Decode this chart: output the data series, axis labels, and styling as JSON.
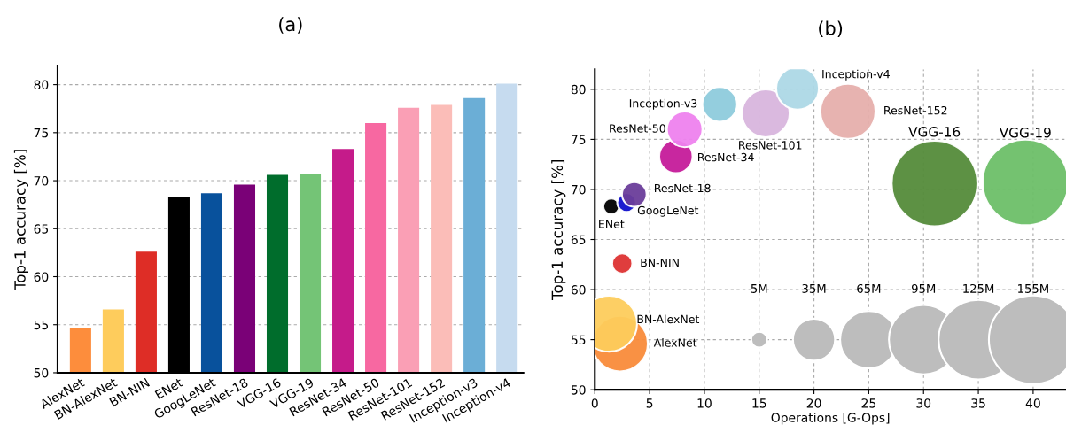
{
  "chart_data": [
    {
      "type": "bar",
      "title": "(a)",
      "ylabel": "Top-1 accuracy [%]",
      "categories": [
        "AlexNet",
        "BN-AlexNet",
        "BN-NIN",
        "ENet",
        "GoogLeNet",
        "ResNet-18",
        "VGG-16",
        "VGG-19",
        "ResNet-34",
        "ResNet-50",
        "ResNet-101",
        "ResNet-152",
        "Inception-v3",
        "Inception-v4"
      ],
      "values": [
        54.6,
        56.6,
        62.6,
        68.3,
        68.7,
        69.6,
        70.6,
        70.7,
        73.3,
        76.0,
        77.6,
        77.9,
        78.6,
        80.1
      ],
      "colors": [
        "#fd8d3c",
        "#fecc5c",
        "#de2d26",
        "#000000",
        "#08519c",
        "#7a0177",
        "#006d2c",
        "#74c476",
        "#c51b8a",
        "#f768a1",
        "#fa9fb5",
        "#fbbdb8",
        "#6baed6",
        "#c6dbef"
      ],
      "ylim": [
        50,
        82
      ],
      "yticks": [
        50,
        55,
        60,
        65,
        70,
        75,
        80
      ],
      "grid": "y"
    },
    {
      "type": "bubble",
      "title": "(b)",
      "xlabel": "Operations [G-Ops]",
      "ylabel": "Top-1 accuracy [%]",
      "xlim": [
        0,
        43
      ],
      "xticks": [
        0,
        5,
        10,
        15,
        20,
        25,
        30,
        35,
        40
      ],
      "ylim": [
        50,
        82
      ],
      "yticks": [
        50,
        55,
        60,
        65,
        70,
        75,
        80
      ],
      "grid": true,
      "series": [
        {
          "name": "AlexNet",
          "color": "#f98b3a",
          "x": [
            2.3
          ],
          "values": [
            54.6
          ],
          "sizes": [
            61
          ]
        },
        {
          "name": "BN-AlexNet",
          "color": "#fdcc5c",
          "x": [
            1.3
          ],
          "values": [
            56.6
          ],
          "sizes": [
            62
          ]
        },
        {
          "name": "BN-NIN",
          "color": "#dd3333",
          "x": [
            2.5
          ],
          "values": [
            62.6
          ],
          "sizes": [
            8
          ]
        },
        {
          "name": "ENet",
          "color": "#000000",
          "x": [
            1.5
          ],
          "values": [
            68.3
          ],
          "sizes": [
            5
          ]
        },
        {
          "name": "GoogLeNet",
          "color": "#1010cc",
          "x": [
            2.9
          ],
          "values": [
            68.7
          ],
          "sizes": [
            7
          ]
        },
        {
          "name": "ResNet-18",
          "color": "#6a3d9a",
          "x": [
            3.6
          ],
          "values": [
            69.5
          ],
          "sizes": [
            12
          ]
        },
        {
          "name": "VGG-16",
          "color": "#548b3a",
          "x": [
            31.0
          ],
          "values": [
            70.6
          ],
          "sizes": [
            145
          ]
        },
        {
          "name": "VGG-19",
          "color": "#6dbf68",
          "x": [
            39.3
          ],
          "values": [
            70.7
          ],
          "sizes": [
            145
          ]
        },
        {
          "name": "ResNet-34",
          "color": "#c51b9a",
          "x": [
            7.4
          ],
          "values": [
            73.3
          ],
          "sizes": [
            22
          ]
        },
        {
          "name": "ResNet-50",
          "color": "#ee82ee",
          "x": [
            8.2
          ],
          "values": [
            76.0
          ],
          "sizes": [
            25
          ]
        },
        {
          "name": "ResNet-101",
          "color": "#d8b5dd",
          "x": [
            15.6
          ],
          "values": [
            77.6
          ],
          "sizes": [
            45
          ]
        },
        {
          "name": "ResNet-152",
          "color": "#e6afac",
          "x": [
            23.1
          ],
          "values": [
            77.8
          ],
          "sizes": [
            60
          ]
        },
        {
          "name": "Inception-v3",
          "color": "#8ecbdc",
          "x": [
            11.4
          ],
          "values": [
            78.5
          ],
          "sizes": [
            24
          ]
        },
        {
          "name": "Inception-v4",
          "color": "#add8e6",
          "x": [
            18.5
          ],
          "values": [
            80.1
          ],
          "sizes": [
            36
          ]
        }
      ],
      "size_legend": [
        {
          "value": 5,
          "label": "5M"
        },
        {
          "value": 35,
          "label": "35M"
        },
        {
          "value": 65,
          "label": "65M"
        },
        {
          "value": 95,
          "label": "95M"
        },
        {
          "value": 125,
          "label": "125M"
        },
        {
          "value": 155,
          "label": "155M"
        }
      ]
    }
  ]
}
